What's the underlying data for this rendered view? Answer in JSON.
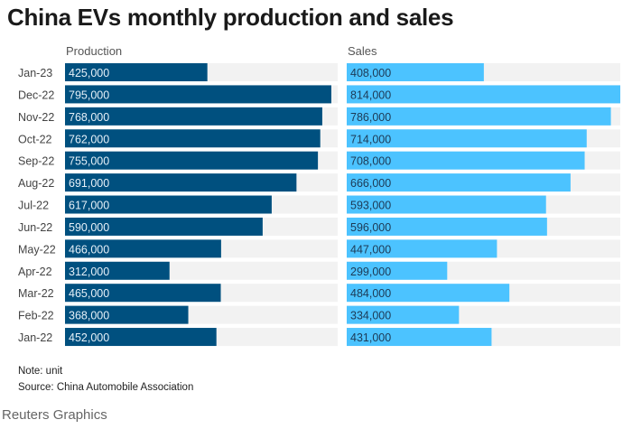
{
  "title": "China EVs monthly production and sales",
  "note": "Note: unit",
  "source": "Source: China Automobile Association",
  "credit": "Reuters Graphics",
  "chart_data": [
    {
      "type": "bar",
      "orientation": "horizontal",
      "title": "Production",
      "color": "#00507f",
      "track_color": "#f2f2f2",
      "xlim": [
        0,
        814000
      ],
      "categories": [
        "Jan-23",
        "Dec-22",
        "Nov-22",
        "Oct-22",
        "Sep-22",
        "Aug-22",
        "Jul-22",
        "Jun-22",
        "May-22",
        "Apr-22",
        "Mar-22",
        "Feb-22",
        "Jan-22"
      ],
      "values": [
        425000,
        795000,
        768000,
        762000,
        755000,
        691000,
        617000,
        590000,
        466000,
        312000,
        465000,
        368000,
        452000
      ],
      "labels": [
        "425,000",
        "795,000",
        "768,000",
        "762,000",
        "755,000",
        "691,000",
        "617,000",
        "590,000",
        "466,000",
        "312,000",
        "465,000",
        "368,000",
        "452,000"
      ]
    },
    {
      "type": "bar",
      "orientation": "horizontal",
      "title": "Sales",
      "color": "#4cc3ff",
      "track_color": "#f2f2f2",
      "xlim": [
        0,
        814000
      ],
      "categories": [
        "Jan-23",
        "Dec-22",
        "Nov-22",
        "Oct-22",
        "Sep-22",
        "Aug-22",
        "Jul-22",
        "Jun-22",
        "May-22",
        "Apr-22",
        "Mar-22",
        "Feb-22",
        "Jan-22"
      ],
      "values": [
        408000,
        814000,
        786000,
        714000,
        708000,
        666000,
        593000,
        596000,
        447000,
        299000,
        484000,
        334000,
        431000
      ],
      "labels": [
        "408,000",
        "814,000",
        "786,000",
        "714,000",
        "708,000",
        "666,000",
        "593,000",
        "596,000",
        "447,000",
        "299,000",
        "484,000",
        "334,000",
        "431,000"
      ]
    }
  ]
}
